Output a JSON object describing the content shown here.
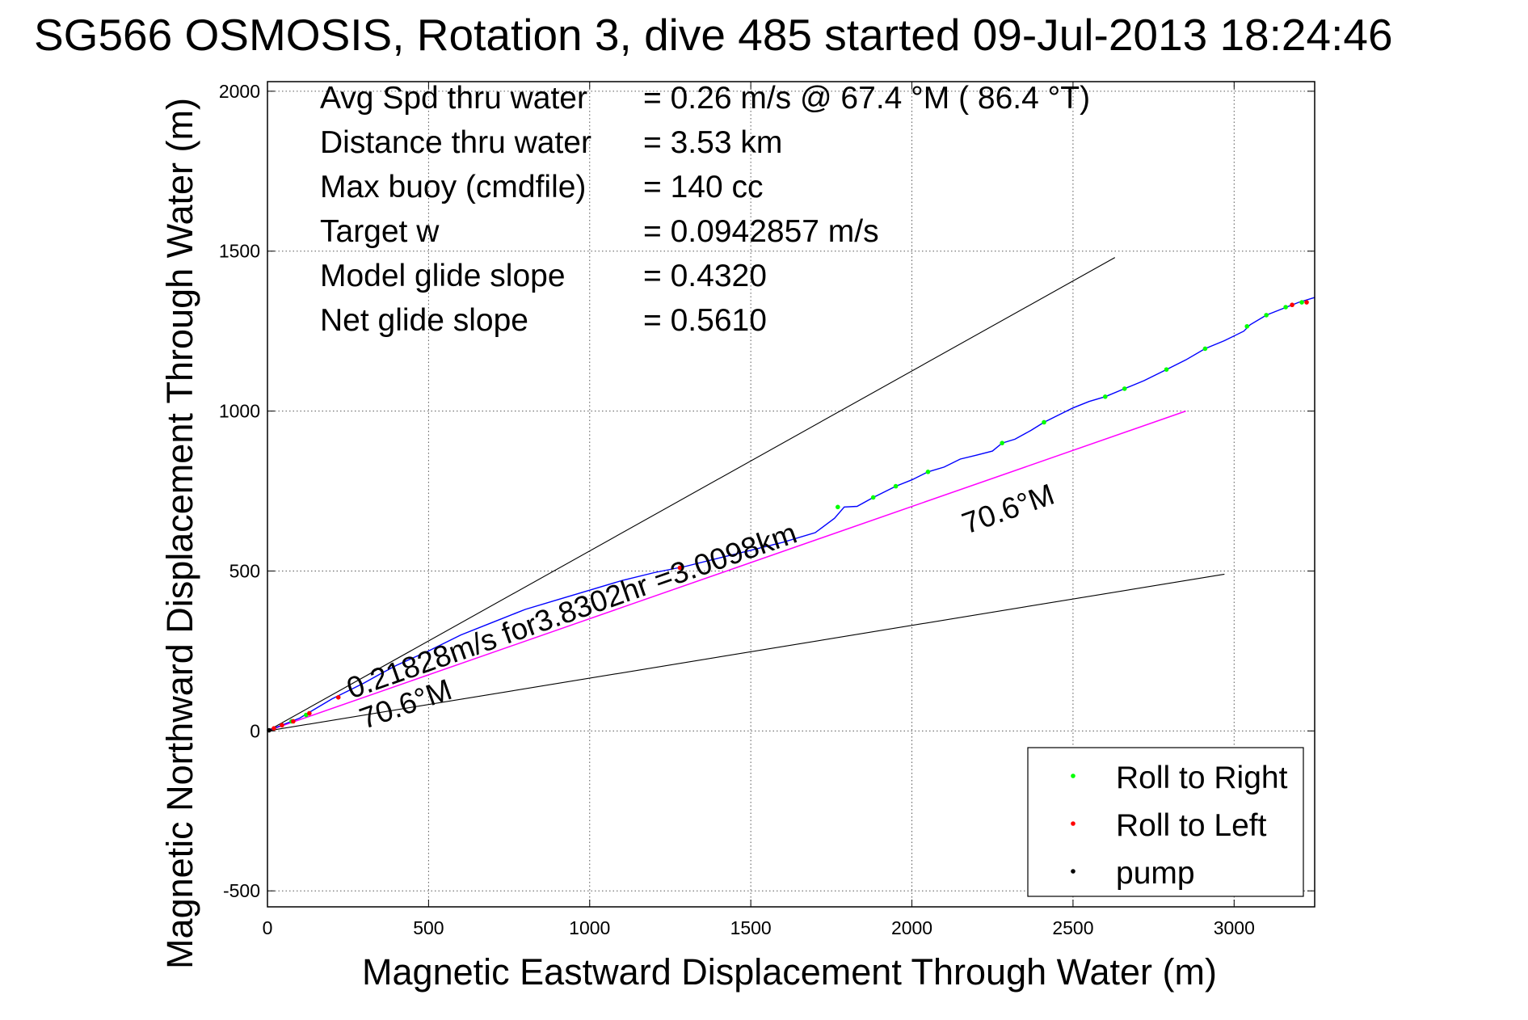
{
  "chart_data": {
    "type": "line",
    "title": "SG566 OSMOSIS, Rotation 3, dive 485 started 09-Jul-2013 18:24:46",
    "xlabel": "Magnetic Eastward Displacement Through Water (m)",
    "ylabel": "Magnetic Northward Displacement Through Water (m)",
    "xlim": [
      0,
      3250
    ],
    "ylim": [
      -550,
      2030
    ],
    "xticks": [
      0,
      500,
      1000,
      1500,
      2000,
      2500,
      3000
    ],
    "yticks": [
      -500,
      0,
      500,
      1000,
      1500,
      2000
    ],
    "grid": true,
    "legend_position": "bottom-right",
    "stats": [
      {
        "label": "Avg Spd thru water",
        "value": "=  0.26 m/s @  67.4 °M ( 86.4 °T)"
      },
      {
        "label": "Distance thru water",
        "value": "=  3.53 km"
      },
      {
        "label": "Max buoy (cmdfile)",
        "value": "= 140 cc"
      },
      {
        "label": "Target w",
        "value": "= 0.0942857 m/s"
      },
      {
        "label": "Model glide slope",
        "value": "= 0.4320"
      },
      {
        "label": "Net glide slope",
        "value": "= 0.5610"
      }
    ],
    "annotations": [
      {
        "text": "0.21828m/s for3.8302hr =3.0098km",
        "x": 260,
        "y": 100,
        "angle": 19.4
      },
      {
        "text": "70.6°M",
        "x": 300,
        "y": 5,
        "angle": 19.4
      },
      {
        "text": "70.6°M",
        "x": 2170,
        "y": 615,
        "angle": 19.4
      }
    ],
    "reference_lines": [
      {
        "name": "upper-bound",
        "color": "#000000",
        "x": [
          0,
          2630
        ],
        "y": [
          0,
          1480
        ]
      },
      {
        "name": "net-heading",
        "color": "#ff00ff",
        "x": [
          0,
          2850
        ],
        "y": [
          0,
          1000
        ]
      },
      {
        "name": "lower-bound",
        "color": "#000000",
        "x": [
          0,
          2970
        ],
        "y": [
          0,
          490
        ]
      }
    ],
    "track": {
      "color": "#0000ff",
      "x": [
        0,
        50,
        100,
        150,
        200,
        250,
        300,
        350,
        400,
        500,
        600,
        700,
        800,
        900,
        1000,
        1100,
        1200,
        1300,
        1400,
        1500,
        1600,
        1700,
        1760,
        1790,
        1830,
        1880,
        1950,
        2000,
        2050,
        2100,
        2150,
        2200,
        2250,
        2280,
        2320,
        2370,
        2410,
        2450,
        2500,
        2550,
        2600,
        2660,
        2720,
        2790,
        2850,
        2910,
        2970,
        3030,
        3050,
        3100,
        3150,
        3200,
        3250
      ],
      "y": [
        0,
        20,
        40,
        70,
        100,
        125,
        150,
        178,
        205,
        250,
        300,
        340,
        380,
        410,
        440,
        470,
        495,
        515,
        540,
        565,
        590,
        620,
        665,
        700,
        702,
        730,
        765,
        785,
        810,
        825,
        850,
        862,
        875,
        900,
        912,
        940,
        965,
        985,
        1010,
        1030,
        1045,
        1070,
        1095,
        1130,
        1160,
        1195,
        1220,
        1250,
        1270,
        1300,
        1320,
        1340,
        1355
      ]
    },
    "series": [
      {
        "name": "Roll to Right",
        "color": "#00ff00",
        "x": [
          75,
          120,
          1770,
          1880,
          1950,
          2050,
          2280,
          2410,
          2600,
          2660,
          2790,
          2910,
          3040,
          3100,
          3160,
          3210
        ],
        "y": [
          30,
          50,
          700,
          730,
          765,
          810,
          900,
          965,
          1045,
          1070,
          1130,
          1195,
          1265,
          1300,
          1325,
          1340
        ]
      },
      {
        "name": "Roll to Left",
        "color": "#ff0000",
        "x": [
          20,
          45,
          80,
          130,
          220,
          1280,
          3180,
          3225
        ],
        "y": [
          8,
          18,
          30,
          55,
          105,
          510,
          1332,
          1340
        ]
      },
      {
        "name": "pump",
        "color": "#000000",
        "x": [
          5
        ],
        "y": [
          2
        ]
      }
    ]
  }
}
